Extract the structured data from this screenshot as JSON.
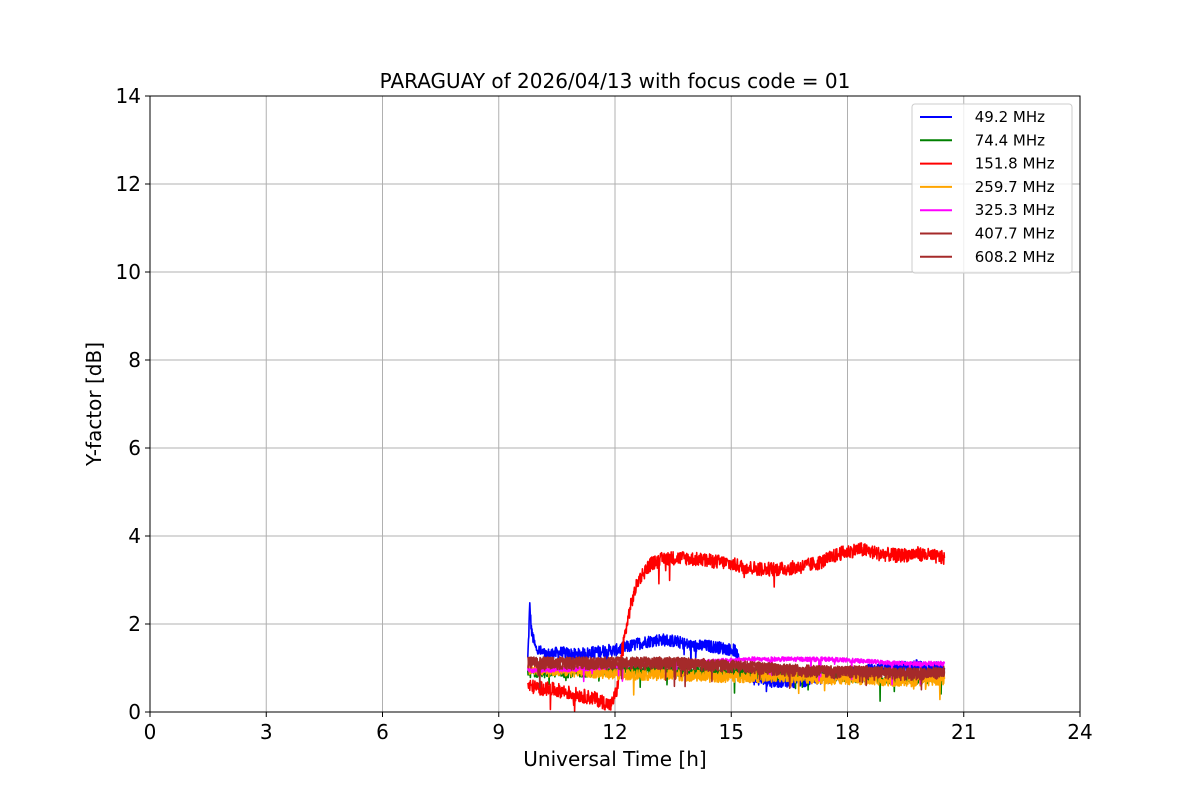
{
  "chart_data": {
    "type": "line",
    "title": "PARAGUAY of 2026/04/13 with focus code = 01",
    "xlabel": "Universal Time [h]",
    "ylabel": "Y-factor [dB]",
    "xlim": [
      0,
      24
    ],
    "ylim": [
      0,
      14
    ],
    "xticks": [
      0,
      3,
      6,
      9,
      12,
      15,
      18,
      21,
      24
    ],
    "yticks": [
      0,
      2,
      4,
      6,
      8,
      10,
      12,
      14
    ],
    "grid": true,
    "legend_position": "top-right",
    "series": [
      {
        "name": " 49.2 MHz",
        "color": "#0000ff",
        "noise": 0.14,
        "x": [
          9.75,
          9.8,
          9.85,
          9.95,
          10.2,
          10.6,
          11.0,
          11.4,
          11.8,
          12.0,
          12.4,
          12.8,
          13.2,
          13.6,
          14.0,
          14.4,
          14.8,
          15.1,
          15.3,
          15.6,
          16.0,
          16.4,
          16.8,
          17.2,
          17.6,
          18.0,
          18.6,
          19.2,
          19.8,
          20.3,
          20.5
        ],
        "y": [
          1.2,
          2.4,
          1.8,
          1.45,
          1.3,
          1.35,
          1.3,
          1.35,
          1.4,
          1.4,
          1.5,
          1.6,
          1.65,
          1.6,
          1.5,
          1.5,
          1.45,
          1.4,
          0.9,
          0.75,
          0.7,
          0.7,
          0.7,
          0.75,
          0.8,
          0.85,
          0.95,
          1.0,
          1.05,
          1.0,
          1.0
        ]
      },
      {
        "name": " 74.4 MHz",
        "color": "#008000",
        "noise": 0.12,
        "x": [
          9.75,
          11.0,
          12.0,
          13.0,
          14.0,
          15.0,
          16.0,
          17.0,
          18.0,
          19.0,
          20.0,
          20.5
        ],
        "y": [
          0.9,
          0.9,
          0.95,
          0.95,
          0.9,
          0.9,
          0.85,
          0.85,
          0.8,
          0.75,
          0.75,
          0.8
        ]
      },
      {
        "name": " 151.8 MHz",
        "color": "#ff0000",
        "noise": 0.16,
        "x": [
          9.75,
          10.0,
          10.5,
          11.0,
          11.5,
          11.9,
          12.05,
          12.2,
          12.4,
          12.6,
          12.9,
          13.3,
          13.8,
          14.3,
          14.8,
          15.3,
          15.8,
          16.3,
          16.8,
          17.3,
          17.8,
          18.3,
          18.8,
          19.3,
          19.8,
          20.5
        ],
        "y": [
          0.6,
          0.55,
          0.5,
          0.4,
          0.3,
          0.15,
          0.5,
          1.5,
          2.4,
          3.0,
          3.35,
          3.5,
          3.5,
          3.45,
          3.4,
          3.3,
          3.25,
          3.25,
          3.3,
          3.4,
          3.6,
          3.7,
          3.6,
          3.55,
          3.6,
          3.5
        ]
      },
      {
        "name": " 259.7 MHz",
        "color": "#ffa500",
        "noise": 0.13,
        "x": [
          9.75,
          10.5,
          11.5,
          12.5,
          13.5,
          14.5,
          15.5,
          16.5,
          17.5,
          18.5,
          19.5,
          20.5
        ],
        "y": [
          1.0,
          0.95,
          0.9,
          0.85,
          0.85,
          0.8,
          0.8,
          0.8,
          0.75,
          0.75,
          0.7,
          0.75
        ]
      },
      {
        "name": " 325.3 MHz",
        "color": "#ff00ff",
        "noise": 0.05,
        "x": [
          9.75,
          10.5,
          11.5,
          12.5,
          13.5,
          14.5,
          15.5,
          16.5,
          17.5,
          18.5,
          19.5,
          20.5
        ],
        "y": [
          0.95,
          0.95,
          1.0,
          1.1,
          1.15,
          1.15,
          1.2,
          1.2,
          1.2,
          1.15,
          1.1,
          1.1
        ]
      },
      {
        "name": " 407.7 MHz",
        "color": "#a52a2a",
        "noise": 0.1,
        "x": [
          9.75,
          10.5,
          11.5,
          12.5,
          13.5,
          14.5,
          15.5,
          16.5,
          17.5,
          18.5,
          19.5,
          20.5
        ],
        "y": [
          1.15,
          1.15,
          1.15,
          1.15,
          1.15,
          1.1,
          1.05,
          1.0,
          0.95,
          0.95,
          0.9,
          0.9
        ]
      },
      {
        "name": " 608.2 MHz",
        "color": "#a52a2a",
        "noise": 0.14,
        "x": [
          9.75,
          10.5,
          11.5,
          12.5,
          13.5,
          14.5,
          15.5,
          16.5,
          17.5,
          18.5,
          19.5,
          20.5
        ],
        "y": [
          1.1,
          1.1,
          1.1,
          1.1,
          1.1,
          1.05,
          1.0,
          0.95,
          0.9,
          0.9,
          0.85,
          0.9
        ]
      }
    ]
  }
}
